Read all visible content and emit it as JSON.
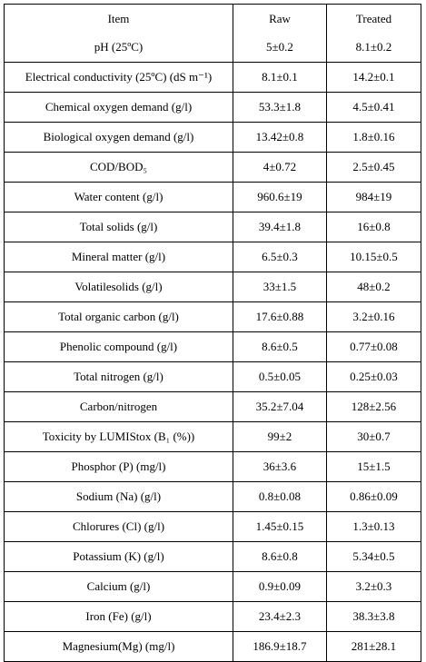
{
  "table": {
    "header": [
      "Item",
      "Raw",
      "Treated"
    ],
    "rows": [
      [
        "pH (25ºC)",
        "5±0.2",
        "8.1±0.2"
      ],
      [
        "Electrical conductivity (25ºC) (dS m⁻¹)",
        "8.1±0.1",
        "14.2±0.1"
      ],
      [
        "Chemical oxygen demand (g/l)",
        "53.3±1.8",
        "4.5±0.41"
      ],
      [
        "Biological   oxygen demand (g/l)",
        "13.42±0.8",
        "1.8±0.16"
      ],
      [
        "COD/BOD₅",
        "4±0.72",
        "2.5±0.45"
      ],
      [
        "Water content (g/l)",
        "960.6±19",
        "984±19"
      ],
      [
        "Total solids (g/l)",
        "39.4±1.8",
        "16±0.8"
      ],
      [
        "Mineral matter (g/l)",
        "6.5±0.3",
        "10.15±0.5"
      ],
      [
        "Volatilesolids (g/l)",
        "33±1.5",
        "48±0.2"
      ],
      [
        "Total organic carbon (g/l)",
        "17.6±0.88",
        "3.2±0.16"
      ],
      [
        "Phenolic compound (g/l)",
        "8.6±0.5",
        "0.77±0.08"
      ],
      [
        "Total nitrogen (g/l)",
        "0.5±0.05",
        "0.25±0.03"
      ],
      [
        "Carbon/nitrogen",
        "35.2±7.04",
        "128±2.56"
      ],
      [
        "Toxicity by LUMIStox (B₁ (%))",
        "99±2",
        "30±0.7"
      ],
      [
        "Phosphor (P) (mg/l)",
        "36±3.6",
        "15±1.5"
      ],
      [
        "Sodium (Na) (g/l)",
        "0.8±0.08",
        "0.86±0.09"
      ],
      [
        "Chlorures (Cl) (g/l)",
        "1.45±0.15",
        "1.3±0.13"
      ],
      [
        "Potassium (K) (g/l)",
        "8.6±0.8",
        "5.34±0.5"
      ],
      [
        "Calcium (g/l)",
        "0.9±0.09",
        "3.2±0.3"
      ],
      [
        "Iron (Fe) (g/l)",
        "23.4±2.3",
        "38.3±3.8"
      ],
      [
        "Magnesium(Mg) (mg/l)",
        "186.9±18.7",
        "281±28.1"
      ]
    ]
  }
}
